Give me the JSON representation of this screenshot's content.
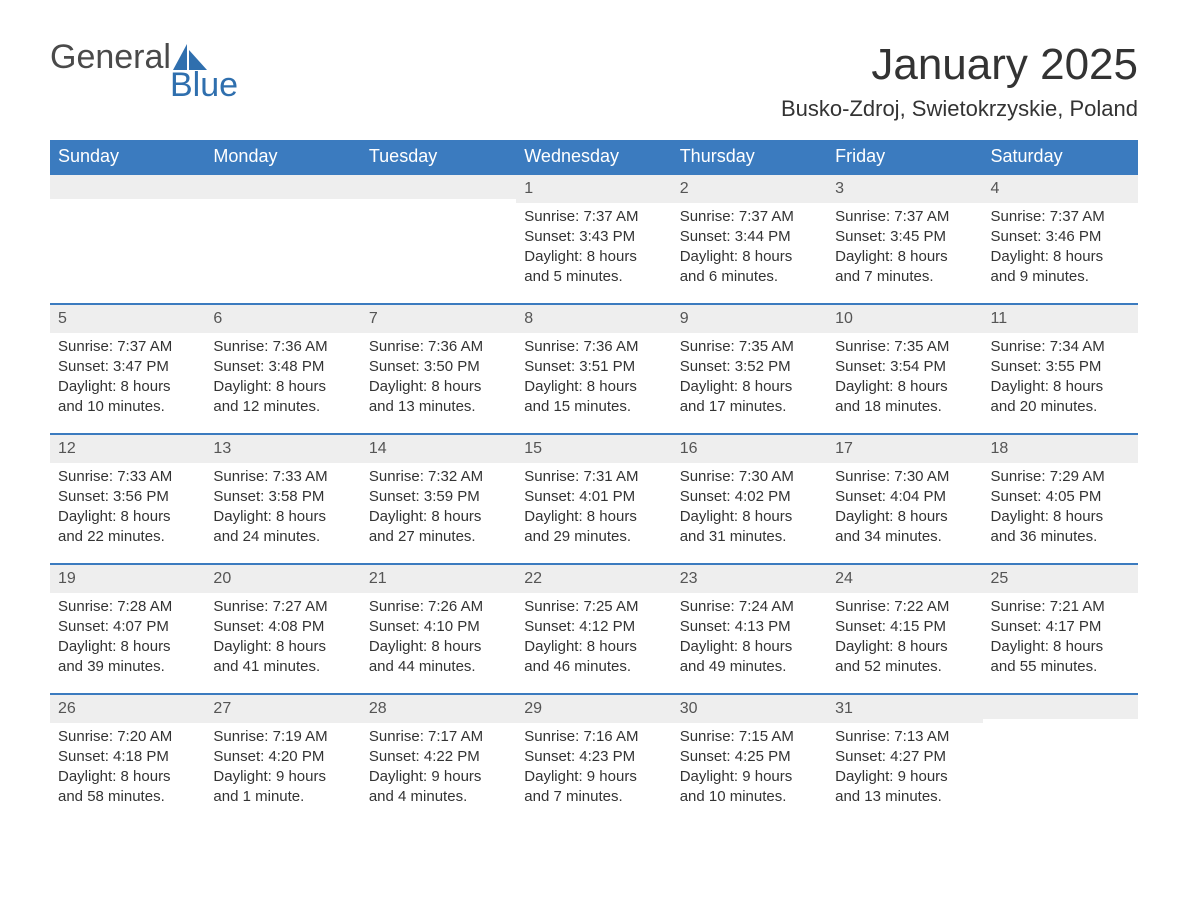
{
  "brand": {
    "word1": "General",
    "word2": "Blue",
    "logo_color": "#2f6fae",
    "text_color": "#4a4a4a"
  },
  "title": "January 2025",
  "location": "Busko-Zdroj, Swietokrzyskie, Poland",
  "colors": {
    "header_bg": "#3b7bbf",
    "header_text": "#ffffff",
    "daynum_bg": "#eeeeee",
    "row_border": "#3b7bbf",
    "body_text": "#333333"
  },
  "layout": {
    "columns": 7,
    "rows": 5,
    "week_start": "Sunday"
  },
  "weekdays": [
    "Sunday",
    "Monday",
    "Tuesday",
    "Wednesday",
    "Thursday",
    "Friday",
    "Saturday"
  ],
  "weeks": [
    [
      {
        "day": "",
        "sunrise": "",
        "sunset": "",
        "daylight1": "",
        "daylight2": ""
      },
      {
        "day": "",
        "sunrise": "",
        "sunset": "",
        "daylight1": "",
        "daylight2": ""
      },
      {
        "day": "",
        "sunrise": "",
        "sunset": "",
        "daylight1": "",
        "daylight2": ""
      },
      {
        "day": "1",
        "sunrise": "Sunrise: 7:37 AM",
        "sunset": "Sunset: 3:43 PM",
        "daylight1": "Daylight: 8 hours",
        "daylight2": "and 5 minutes."
      },
      {
        "day": "2",
        "sunrise": "Sunrise: 7:37 AM",
        "sunset": "Sunset: 3:44 PM",
        "daylight1": "Daylight: 8 hours",
        "daylight2": "and 6 minutes."
      },
      {
        "day": "3",
        "sunrise": "Sunrise: 7:37 AM",
        "sunset": "Sunset: 3:45 PM",
        "daylight1": "Daylight: 8 hours",
        "daylight2": "and 7 minutes."
      },
      {
        "day": "4",
        "sunrise": "Sunrise: 7:37 AM",
        "sunset": "Sunset: 3:46 PM",
        "daylight1": "Daylight: 8 hours",
        "daylight2": "and 9 minutes."
      }
    ],
    [
      {
        "day": "5",
        "sunrise": "Sunrise: 7:37 AM",
        "sunset": "Sunset: 3:47 PM",
        "daylight1": "Daylight: 8 hours",
        "daylight2": "and 10 minutes."
      },
      {
        "day": "6",
        "sunrise": "Sunrise: 7:36 AM",
        "sunset": "Sunset: 3:48 PM",
        "daylight1": "Daylight: 8 hours",
        "daylight2": "and 12 minutes."
      },
      {
        "day": "7",
        "sunrise": "Sunrise: 7:36 AM",
        "sunset": "Sunset: 3:50 PM",
        "daylight1": "Daylight: 8 hours",
        "daylight2": "and 13 minutes."
      },
      {
        "day": "8",
        "sunrise": "Sunrise: 7:36 AM",
        "sunset": "Sunset: 3:51 PM",
        "daylight1": "Daylight: 8 hours",
        "daylight2": "and 15 minutes."
      },
      {
        "day": "9",
        "sunrise": "Sunrise: 7:35 AM",
        "sunset": "Sunset: 3:52 PM",
        "daylight1": "Daylight: 8 hours",
        "daylight2": "and 17 minutes."
      },
      {
        "day": "10",
        "sunrise": "Sunrise: 7:35 AM",
        "sunset": "Sunset: 3:54 PM",
        "daylight1": "Daylight: 8 hours",
        "daylight2": "and 18 minutes."
      },
      {
        "day": "11",
        "sunrise": "Sunrise: 7:34 AM",
        "sunset": "Sunset: 3:55 PM",
        "daylight1": "Daylight: 8 hours",
        "daylight2": "and 20 minutes."
      }
    ],
    [
      {
        "day": "12",
        "sunrise": "Sunrise: 7:33 AM",
        "sunset": "Sunset: 3:56 PM",
        "daylight1": "Daylight: 8 hours",
        "daylight2": "and 22 minutes."
      },
      {
        "day": "13",
        "sunrise": "Sunrise: 7:33 AM",
        "sunset": "Sunset: 3:58 PM",
        "daylight1": "Daylight: 8 hours",
        "daylight2": "and 24 minutes."
      },
      {
        "day": "14",
        "sunrise": "Sunrise: 7:32 AM",
        "sunset": "Sunset: 3:59 PM",
        "daylight1": "Daylight: 8 hours",
        "daylight2": "and 27 minutes."
      },
      {
        "day": "15",
        "sunrise": "Sunrise: 7:31 AM",
        "sunset": "Sunset: 4:01 PM",
        "daylight1": "Daylight: 8 hours",
        "daylight2": "and 29 minutes."
      },
      {
        "day": "16",
        "sunrise": "Sunrise: 7:30 AM",
        "sunset": "Sunset: 4:02 PM",
        "daylight1": "Daylight: 8 hours",
        "daylight2": "and 31 minutes."
      },
      {
        "day": "17",
        "sunrise": "Sunrise: 7:30 AM",
        "sunset": "Sunset: 4:04 PM",
        "daylight1": "Daylight: 8 hours",
        "daylight2": "and 34 minutes."
      },
      {
        "day": "18",
        "sunrise": "Sunrise: 7:29 AM",
        "sunset": "Sunset: 4:05 PM",
        "daylight1": "Daylight: 8 hours",
        "daylight2": "and 36 minutes."
      }
    ],
    [
      {
        "day": "19",
        "sunrise": "Sunrise: 7:28 AM",
        "sunset": "Sunset: 4:07 PM",
        "daylight1": "Daylight: 8 hours",
        "daylight2": "and 39 minutes."
      },
      {
        "day": "20",
        "sunrise": "Sunrise: 7:27 AM",
        "sunset": "Sunset: 4:08 PM",
        "daylight1": "Daylight: 8 hours",
        "daylight2": "and 41 minutes."
      },
      {
        "day": "21",
        "sunrise": "Sunrise: 7:26 AM",
        "sunset": "Sunset: 4:10 PM",
        "daylight1": "Daylight: 8 hours",
        "daylight2": "and 44 minutes."
      },
      {
        "day": "22",
        "sunrise": "Sunrise: 7:25 AM",
        "sunset": "Sunset: 4:12 PM",
        "daylight1": "Daylight: 8 hours",
        "daylight2": "and 46 minutes."
      },
      {
        "day": "23",
        "sunrise": "Sunrise: 7:24 AM",
        "sunset": "Sunset: 4:13 PM",
        "daylight1": "Daylight: 8 hours",
        "daylight2": "and 49 minutes."
      },
      {
        "day": "24",
        "sunrise": "Sunrise: 7:22 AM",
        "sunset": "Sunset: 4:15 PM",
        "daylight1": "Daylight: 8 hours",
        "daylight2": "and 52 minutes."
      },
      {
        "day": "25",
        "sunrise": "Sunrise: 7:21 AM",
        "sunset": "Sunset: 4:17 PM",
        "daylight1": "Daylight: 8 hours",
        "daylight2": "and 55 minutes."
      }
    ],
    [
      {
        "day": "26",
        "sunrise": "Sunrise: 7:20 AM",
        "sunset": "Sunset: 4:18 PM",
        "daylight1": "Daylight: 8 hours",
        "daylight2": "and 58 minutes."
      },
      {
        "day": "27",
        "sunrise": "Sunrise: 7:19 AM",
        "sunset": "Sunset: 4:20 PM",
        "daylight1": "Daylight: 9 hours",
        "daylight2": "and 1 minute."
      },
      {
        "day": "28",
        "sunrise": "Sunrise: 7:17 AM",
        "sunset": "Sunset: 4:22 PM",
        "daylight1": "Daylight: 9 hours",
        "daylight2": "and 4 minutes."
      },
      {
        "day": "29",
        "sunrise": "Sunrise: 7:16 AM",
        "sunset": "Sunset: 4:23 PM",
        "daylight1": "Daylight: 9 hours",
        "daylight2": "and 7 minutes."
      },
      {
        "day": "30",
        "sunrise": "Sunrise: 7:15 AM",
        "sunset": "Sunset: 4:25 PM",
        "daylight1": "Daylight: 9 hours",
        "daylight2": "and 10 minutes."
      },
      {
        "day": "31",
        "sunrise": "Sunrise: 7:13 AM",
        "sunset": "Sunset: 4:27 PM",
        "daylight1": "Daylight: 9 hours",
        "daylight2": "and 13 minutes."
      },
      {
        "day": "",
        "sunrise": "",
        "sunset": "",
        "daylight1": "",
        "daylight2": ""
      }
    ]
  ]
}
